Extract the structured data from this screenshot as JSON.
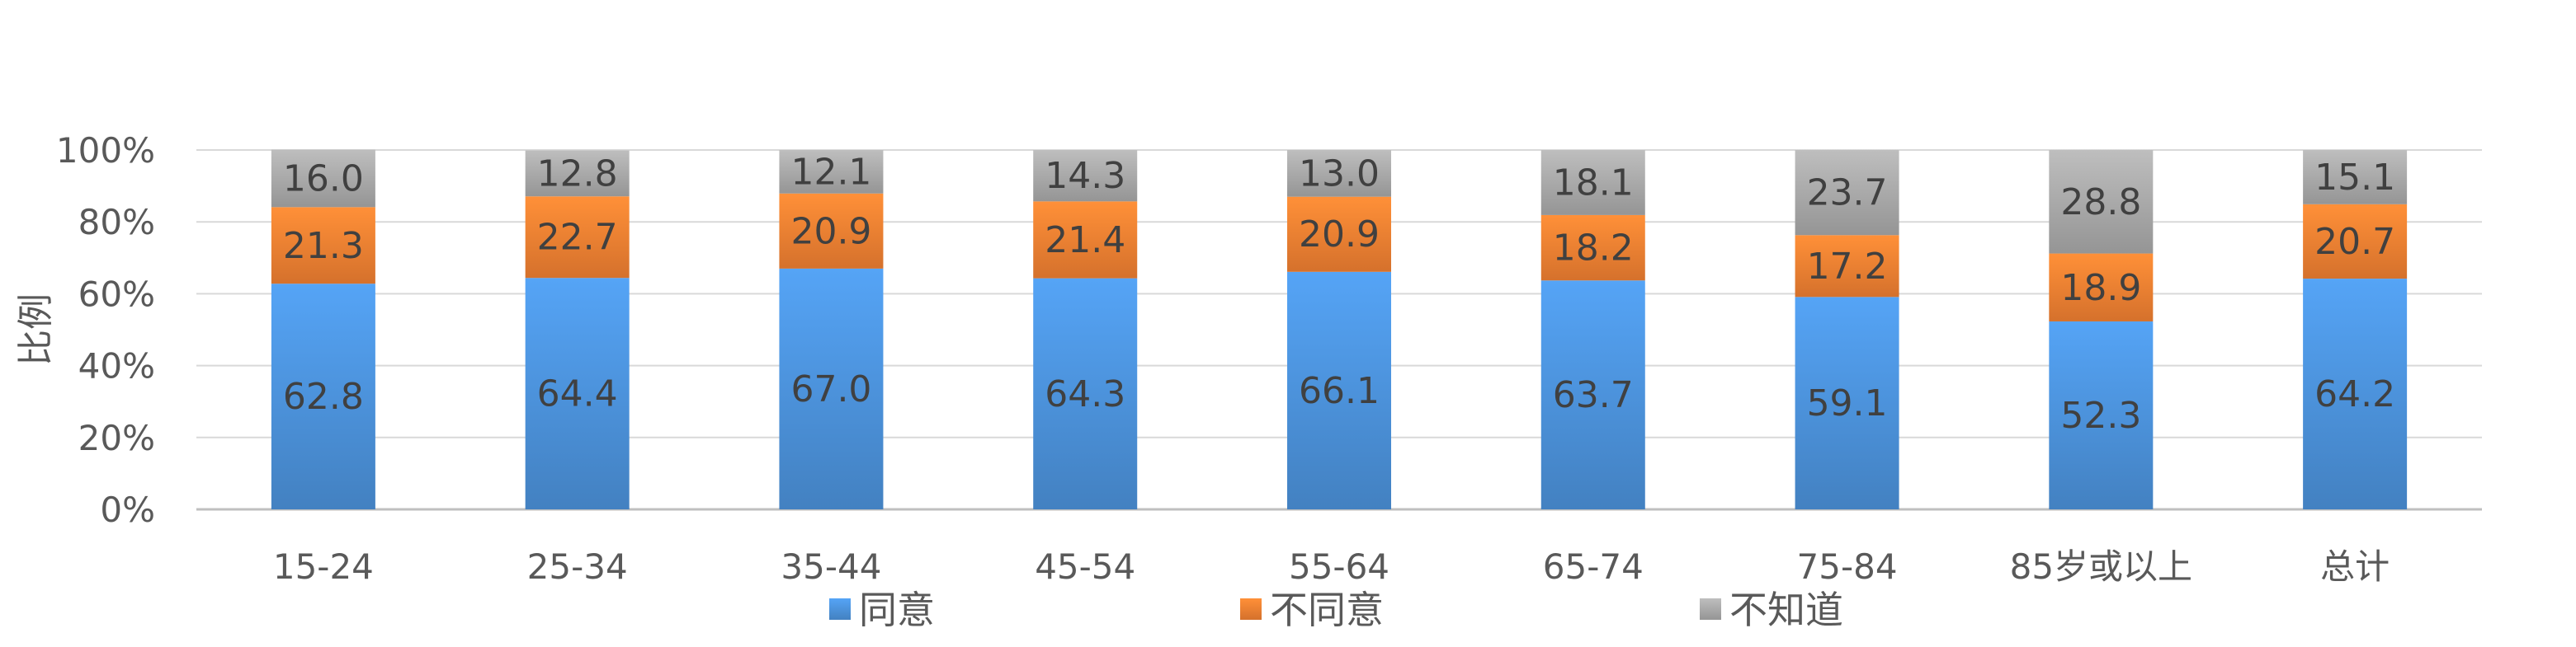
{
  "chart_data": {
    "type": "bar",
    "stacked": true,
    "percent_stacked": true,
    "categories": [
      "15-24",
      "25-34",
      "35-44",
      "45-54",
      "55-64",
      "65-74",
      "75-84",
      "85岁或以上",
      "总计"
    ],
    "series": [
      {
        "name": "同意",
        "color": "#4a8fd6",
        "values": [
          62.8,
          64.4,
          67.0,
          64.3,
          66.1,
          63.7,
          59.1,
          52.3,
          64.2
        ],
        "labels": [
          "62.8",
          "64.4",
          "67.0",
          "64.3",
          "66.1",
          "63.7",
          "59.1",
          "52.3",
          "64.2"
        ]
      },
      {
        "name": "不同意",
        "color": "#ed7d31",
        "values": [
          21.3,
          22.7,
          20.9,
          21.4,
          20.9,
          18.2,
          17.2,
          18.9,
          20.7
        ],
        "labels": [
          "21.3",
          "22.7",
          "20.9",
          "21.4",
          "20.9",
          "18.2",
          "17.2",
          "18.9",
          "20.7"
        ]
      },
      {
        "name": "不知道",
        "color": "#a5a5a5",
        "values": [
          16.0,
          12.8,
          12.1,
          14.3,
          13.0,
          18.1,
          23.7,
          28.8,
          15.1
        ],
        "labels": [
          "16.0",
          "12.8",
          "12.1",
          "14.3",
          "13.0",
          "18.1",
          "23.7",
          "28.8",
          "15.1"
        ]
      }
    ],
    "ylabel": "比例",
    "xlabel": "",
    "title": "",
    "ylim": [
      0,
      100
    ],
    "yticks": [
      "0%",
      "20%",
      "40%",
      "60%",
      "80%",
      "100%"
    ],
    "grid": true,
    "legend": "bottom"
  }
}
